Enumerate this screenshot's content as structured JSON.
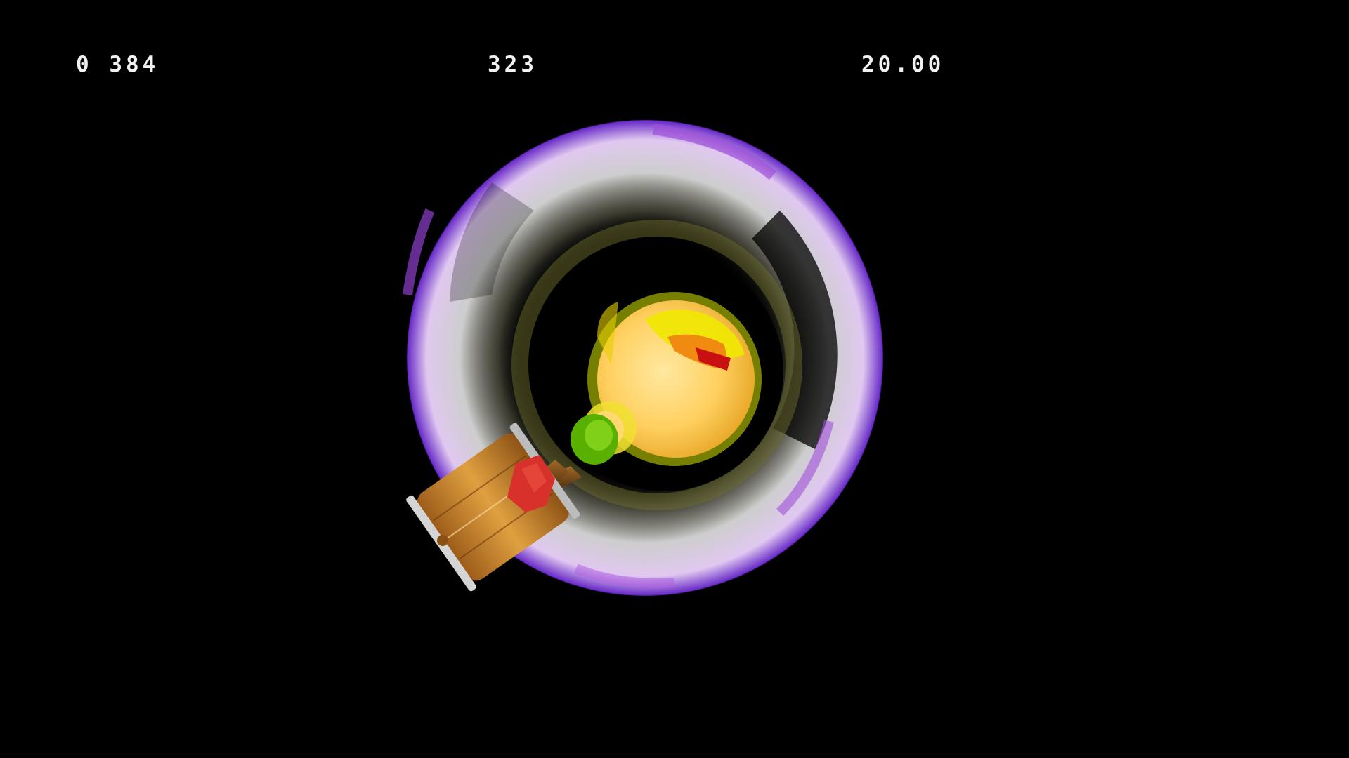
{
  "hud": {
    "left_counter": "0 384",
    "center_counter": "323",
    "right_timer": "20.00"
  },
  "scene": {
    "background_color": "#000000",
    "objects": [
      "warp-vortex",
      "character-ball",
      "barrel-hammer"
    ]
  },
  "colors": {
    "vortex_white": "#ffffff",
    "vortex_purple": "#8c3cd0",
    "vortex_gray": "#9a9a90",
    "character_yellow": "#ffd764",
    "character_glow": "#e6f000",
    "character_red": "#c81010",
    "barrel_wood": "#c8862c",
    "barrel_rim": "#cfcfcf",
    "hammer_handle": "#6a3c14",
    "hammer_tape": "#d8302a",
    "hammer_grip": "#6cc000"
  }
}
